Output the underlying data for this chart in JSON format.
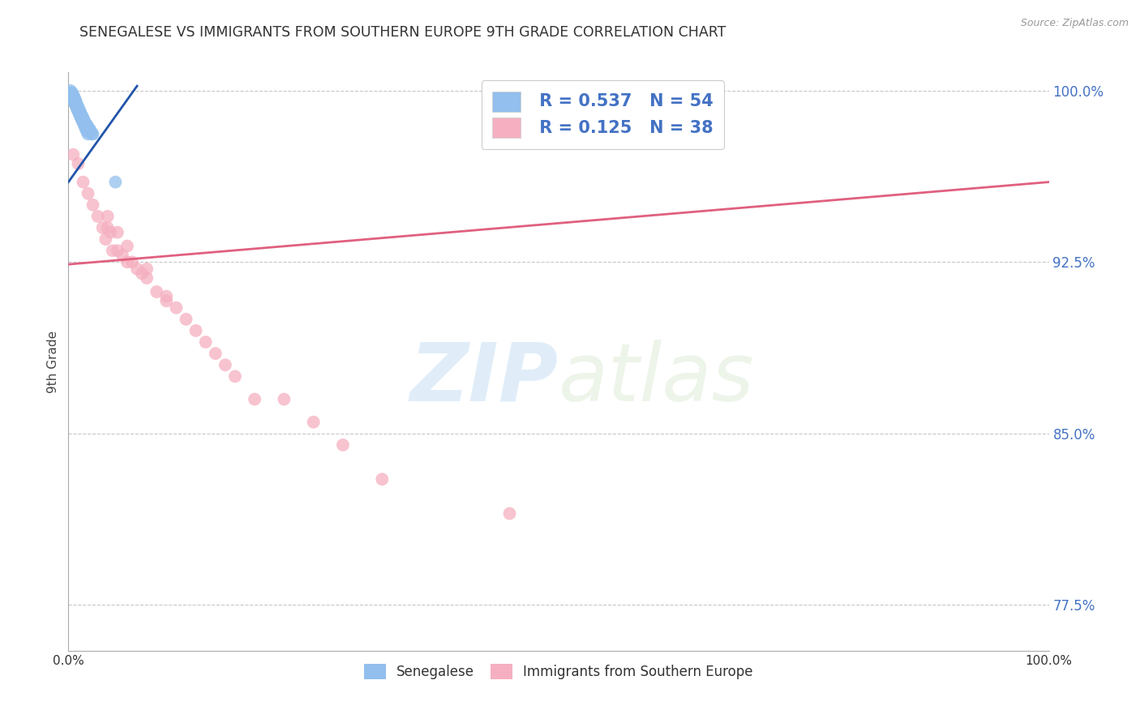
{
  "title": "SENEGALESE VS IMMIGRANTS FROM SOUTHERN EUROPE 9TH GRADE CORRELATION CHART",
  "source": "Source: ZipAtlas.com",
  "ylabel": "9th Grade",
  "xlim": [
    0.0,
    1.0
  ],
  "ylim": [
    0.755,
    1.008
  ],
  "yticks": [
    0.775,
    0.85,
    0.925,
    1.0
  ],
  "ytick_labels": [
    "77.5%",
    "85.0%",
    "92.5%",
    "100.0%"
  ],
  "background_color": "#ffffff",
  "grid_color": "#c8c8c8",
  "series1_name": "Senegalese",
  "series1_color": "#92bfed",
  "series1_line_color": "#2255aa",
  "series1_R": 0.537,
  "series1_N": 54,
  "series2_name": "Immigrants from Southern Europe",
  "series2_color": "#f5afc0",
  "series2_line_color": "#e06080",
  "series2_R": 0.125,
  "series2_N": 38,
  "watermark_zip": "ZIP",
  "watermark_atlas": "atlas",
  "sen_x": [
    0.002,
    0.003,
    0.004,
    0.005,
    0.005,
    0.006,
    0.007,
    0.007,
    0.008,
    0.008,
    0.009,
    0.01,
    0.01,
    0.011,
    0.012,
    0.012,
    0.013,
    0.014,
    0.015,
    0.015,
    0.016,
    0.017,
    0.018,
    0.019,
    0.02,
    0.021,
    0.022,
    0.023,
    0.024,
    0.025,
    0.003,
    0.004,
    0.005,
    0.006,
    0.007,
    0.008,
    0.009,
    0.01,
    0.011,
    0.012,
    0.013,
    0.014,
    0.015,
    0.016,
    0.017,
    0.018,
    0.019,
    0.02,
    0.005,
    0.007,
    0.009,
    0.011,
    0.013,
    0.048
  ],
  "sen_y": [
    1.0,
    0.999,
    0.999,
    0.998,
    0.997,
    0.997,
    0.996,
    0.995,
    0.995,
    0.994,
    0.993,
    0.993,
    0.992,
    0.991,
    0.991,
    0.99,
    0.989,
    0.989,
    0.988,
    0.987,
    0.987,
    0.986,
    0.985,
    0.985,
    0.984,
    0.983,
    0.983,
    0.982,
    0.981,
    0.981,
    0.998,
    0.997,
    0.996,
    0.995,
    0.994,
    0.993,
    0.992,
    0.991,
    0.99,
    0.989,
    0.988,
    0.987,
    0.986,
    0.985,
    0.984,
    0.983,
    0.982,
    0.981,
    0.996,
    0.994,
    0.992,
    0.99,
    0.988,
    0.96
  ],
  "seu_x": [
    0.005,
    0.01,
    0.015,
    0.02,
    0.025,
    0.03,
    0.035,
    0.038,
    0.04,
    0.043,
    0.045,
    0.05,
    0.055,
    0.06,
    0.065,
    0.07,
    0.075,
    0.08,
    0.09,
    0.1,
    0.11,
    0.12,
    0.13,
    0.14,
    0.15,
    0.17,
    0.19,
    0.04,
    0.05,
    0.06,
    0.08,
    0.1,
    0.16,
    0.22,
    0.25,
    0.28,
    0.32,
    0.45
  ],
  "seu_y": [
    0.972,
    0.968,
    0.96,
    0.955,
    0.95,
    0.945,
    0.94,
    0.935,
    0.94,
    0.938,
    0.93,
    0.93,
    0.928,
    0.925,
    0.925,
    0.922,
    0.92,
    0.918,
    0.912,
    0.908,
    0.905,
    0.9,
    0.895,
    0.89,
    0.885,
    0.875,
    0.865,
    0.945,
    0.938,
    0.932,
    0.922,
    0.91,
    0.88,
    0.865,
    0.855,
    0.845,
    0.83,
    0.815
  ],
  "sen_trend_x0": 0.0,
  "sen_trend_x1": 0.07,
  "sen_trend_y0": 0.96,
  "sen_trend_y1": 1.002,
  "seu_trend_x0": 0.0,
  "seu_trend_x1": 1.0,
  "seu_trend_y0": 0.924,
  "seu_trend_y1": 0.96
}
